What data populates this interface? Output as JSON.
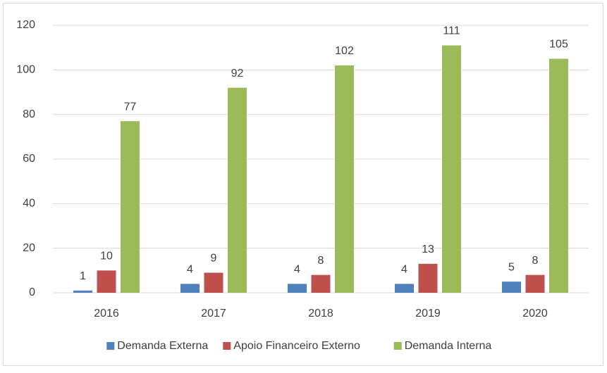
{
  "chart_data": {
    "type": "bar",
    "categories": [
      "2016",
      "2017",
      "2018",
      "2019",
      "2020"
    ],
    "series": [
      {
        "name": "Demanda Externa",
        "color": "#4f81bd",
        "values": [
          1,
          4,
          4,
          4,
          5
        ]
      },
      {
        "name": "Apoio Financeiro Externo",
        "color": "#c0504d",
        "values": [
          10,
          9,
          8,
          13,
          8
        ]
      },
      {
        "name": "Demanda Interna",
        "color": "#9bbb59",
        "values": [
          77,
          92,
          102,
          111,
          105
        ]
      }
    ],
    "ylim": [
      0,
      120
    ],
    "yticks": [
      0,
      20,
      40,
      60,
      80,
      100,
      120
    ],
    "grid": true,
    "legend": "bottom",
    "data_labels": true
  }
}
